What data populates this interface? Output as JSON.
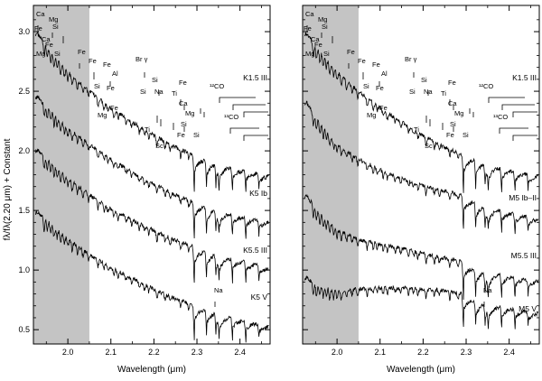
{
  "figure": {
    "ylabel": "fλ/fλ(2.20 μm) + Constant",
    "xlabel": "Wavelength (μm)"
  },
  "chart_data": [
    {
      "type": "line",
      "panel": "left",
      "xlabel": "Wavelength (μm)",
      "ylabel": "fλ/fλ(2.20 μm) + Constant",
      "xlim": [
        1.92,
        2.47
      ],
      "ylim": [
        0.38,
        3.22
      ],
      "xticks": [
        "2.0",
        "2.1",
        "2.2",
        "2.3",
        "2.4"
      ],
      "yticks": [
        "0.5",
        "1.0",
        "1.5",
        "2.0",
        "2.5",
        "3.0"
      ],
      "shaded_region": [
        1.92,
        2.05
      ],
      "grid": false,
      "series": [
        {
          "name": "K1.5 III",
          "x": [
            1.93,
            1.95,
            2.0,
            2.05,
            2.1,
            2.15,
            2.2,
            2.25,
            2.29,
            2.33,
            2.37,
            2.41,
            2.46
          ],
          "y": [
            2.98,
            2.88,
            2.66,
            2.5,
            2.36,
            2.24,
            2.13,
            2.03,
            1.97,
            1.92,
            1.88,
            1.84,
            1.8
          ]
        },
        {
          "name": "K5 Ib",
          "x": [
            1.93,
            1.95,
            2.0,
            2.05,
            2.1,
            2.15,
            2.2,
            2.25,
            2.29,
            2.33,
            2.37,
            2.41,
            2.46
          ],
          "y": [
            2.45,
            2.37,
            2.19,
            2.05,
            1.93,
            1.82,
            1.72,
            1.63,
            1.57,
            1.53,
            1.49,
            1.45,
            1.41
          ]
        },
        {
          "name": "K5.5 III",
          "x": [
            1.93,
            1.95,
            2.0,
            2.05,
            2.1,
            2.15,
            2.2,
            2.25,
            2.29,
            2.33,
            2.37,
            2.41,
            2.46
          ],
          "y": [
            2.0,
            1.94,
            1.77,
            1.63,
            1.51,
            1.42,
            1.33,
            1.25,
            1.2,
            1.16,
            1.12,
            1.08,
            1.03
          ]
        },
        {
          "name": "K5 V",
          "x": [
            1.93,
            1.95,
            2.0,
            2.05,
            2.1,
            2.15,
            2.2,
            2.25,
            2.29,
            2.33,
            2.37,
            2.41,
            2.46
          ],
          "y": [
            1.48,
            1.42,
            1.26,
            1.13,
            1.02,
            0.93,
            0.84,
            0.76,
            0.71,
            0.67,
            0.62,
            0.58,
            0.54
          ]
        }
      ],
      "labels": {
        "series": [
          "K1.5 III",
          "K5 Ib",
          "K5.5 III",
          "K5  V"
        ],
        "lines": [
          "Ca",
          "Mg",
          "Fe",
          "Si",
          "Ca",
          "Mg",
          "Si",
          "Fe",
          "Fe",
          "Fe",
          "Fe",
          "Al",
          "Br γ",
          "Si",
          "Si",
          "Na",
          "Ti",
          "Fe",
          "Ca",
          "Mg",
          "Si",
          "Si",
          "Fe",
          "Mg",
          "Fe",
          "Ti",
          "Sc",
          "Fe",
          "Si",
          "¹²CO",
          "¹³CO",
          "Na"
        ]
      }
    },
    {
      "type": "line",
      "panel": "right",
      "xlabel": "Wavelength (μm)",
      "xlim": [
        1.92,
        2.47
      ],
      "ylim": [
        0.38,
        3.22
      ],
      "xticks": [
        "2.0",
        "2.1",
        "2.2",
        "2.3",
        "2.4"
      ],
      "shaded_region": [
        1.92,
        2.05
      ],
      "grid": false,
      "series": [
        {
          "name": "K1.5 III",
          "x": [
            1.93,
            1.95,
            2.0,
            2.05,
            2.1,
            2.15,
            2.2,
            2.25,
            2.29,
            2.33,
            2.37,
            2.41,
            2.46
          ],
          "y": [
            2.98,
            2.88,
            2.66,
            2.5,
            2.36,
            2.24,
            2.13,
            2.03,
            1.97,
            1.92,
            1.88,
            1.84,
            1.8
          ]
        },
        {
          "name": "M5 Ib–II",
          "x": [
            1.93,
            1.95,
            2.0,
            2.05,
            2.1,
            2.15,
            2.2,
            2.25,
            2.29,
            2.33,
            2.37,
            2.41,
            2.46
          ],
          "y": [
            2.4,
            2.28,
            2.05,
            1.93,
            1.84,
            1.77,
            1.71,
            1.66,
            1.63,
            1.56,
            1.52,
            1.48,
            1.44
          ]
        },
        {
          "name": "M5.5 III",
          "x": [
            1.93,
            1.95,
            2.0,
            2.05,
            2.1,
            2.15,
            2.2,
            2.25,
            2.29,
            2.33,
            2.37,
            2.41,
            2.46
          ],
          "y": [
            1.62,
            1.52,
            1.34,
            1.26,
            1.22,
            1.18,
            1.14,
            1.1,
            1.07,
            1.01,
            0.98,
            0.95,
            0.92
          ]
        },
        {
          "name": "M5  V",
          "x": [
            1.93,
            1.95,
            2.0,
            2.05,
            2.1,
            2.15,
            2.2,
            2.25,
            2.29,
            2.33,
            2.37,
            2.41,
            2.46
          ],
          "y": [
            0.93,
            0.88,
            0.82,
            0.84,
            0.85,
            0.85,
            0.84,
            0.83,
            0.8,
            0.74,
            0.71,
            0.68,
            0.65
          ]
        }
      ],
      "labels": {
        "series": [
          "K1.5 III",
          "M5 Ib–II",
          "M5.5 III",
          "M5  V"
        ],
        "lines": [
          "Ca",
          "Mg",
          "Fe",
          "Si",
          "Ca",
          "Mg",
          "Si",
          "Fe",
          "Fe",
          "Fe",
          "Fe",
          "Al",
          "Br γ",
          "Si",
          "Si",
          "Na",
          "Ti",
          "Fe",
          "Ca",
          "Mg",
          "Si",
          "Si",
          "Fe",
          "Mg",
          "Fe",
          "Ti",
          "Sc",
          "Fe",
          "Si",
          "¹²CO",
          "¹³CO",
          "Na"
        ]
      }
    }
  ]
}
